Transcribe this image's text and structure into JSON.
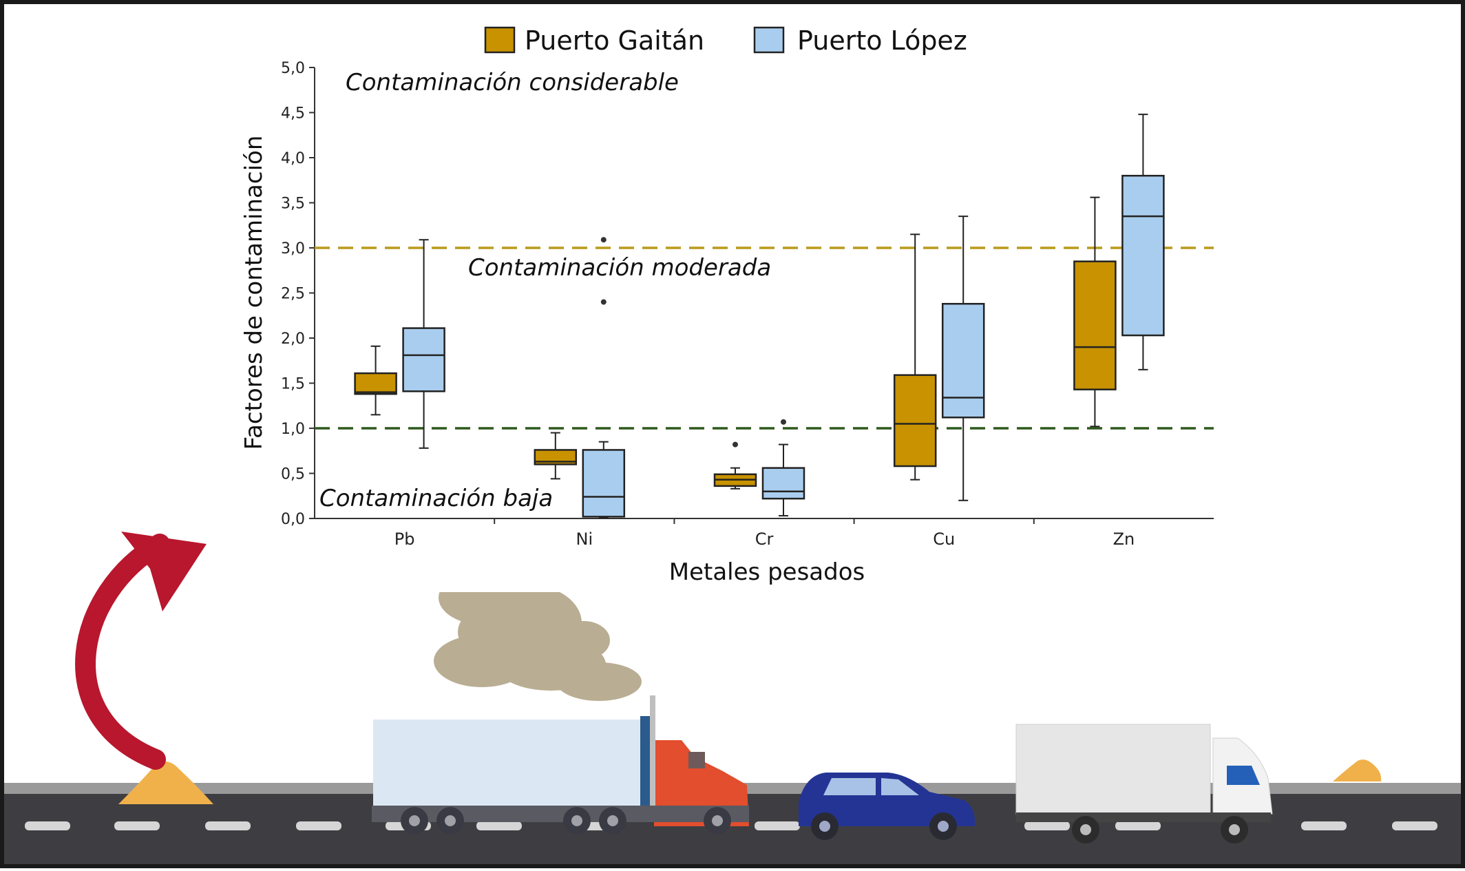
{
  "legend": [
    {
      "name": "Puerto Gaitán",
      "color": "#c89200"
    },
    {
      "name": "Puerto López",
      "color": "#a9cdee"
    }
  ],
  "chart_data": {
    "type": "boxplot",
    "xlabel": "Metales pesados",
    "ylabel": "Factores de contaminación",
    "ylim": [
      0,
      5
    ],
    "yticks": [
      "0,0",
      "0,5",
      "1,0",
      "1,5",
      "2,0",
      "2,5",
      "3,0",
      "3,5",
      "4,0",
      "4,5",
      "5,0"
    ],
    "categories": [
      "Pb",
      "Ni",
      "Cr",
      "Cu",
      "Zn"
    ],
    "series": [
      {
        "name": "Puerto Gaitán",
        "color": "#c89200",
        "boxes": [
          {
            "min": 1.15,
            "q1": 1.38,
            "median": 1.4,
            "q3": 1.61,
            "max": 1.91,
            "outliers": []
          },
          {
            "min": 0.44,
            "q1": 0.6,
            "median": 0.63,
            "q3": 0.76,
            "max": 0.95,
            "outliers": []
          },
          {
            "min": 0.33,
            "q1": 0.36,
            "median": 0.43,
            "q3": 0.49,
            "max": 0.56,
            "outliers": [
              0.82
            ]
          },
          {
            "min": 0.43,
            "q1": 0.58,
            "median": 1.05,
            "q3": 1.59,
            "max": 3.15,
            "outliers": []
          },
          {
            "min": 1.02,
            "q1": 1.43,
            "median": 1.9,
            "q3": 2.85,
            "max": 3.56,
            "outliers": []
          }
        ]
      },
      {
        "name": "Puerto López",
        "color": "#a9cdee",
        "boxes": [
          {
            "min": 0.78,
            "q1": 1.41,
            "median": 1.81,
            "q3": 2.11,
            "max": 3.09,
            "outliers": []
          },
          {
            "min": 0.01,
            "q1": 0.02,
            "median": 0.24,
            "q3": 0.76,
            "max": 0.85,
            "outliers": [
              2.4,
              3.09
            ]
          },
          {
            "min": 0.03,
            "q1": 0.22,
            "median": 0.3,
            "q3": 0.56,
            "max": 0.82,
            "outliers": [
              1.07
            ]
          },
          {
            "min": 0.2,
            "q1": 1.12,
            "median": 1.34,
            "q3": 2.38,
            "max": 3.35,
            "outliers": []
          },
          {
            "min": 1.65,
            "q1": 2.03,
            "median": 3.35,
            "q3": 3.8,
            "max": 4.48,
            "outliers": []
          }
        ]
      }
    ],
    "reference_lines": [
      {
        "y": 3.0,
        "color": "#b99a1a",
        "style": "dashed"
      },
      {
        "y": 1.0,
        "color": "#2e5a1c",
        "style": "dashed"
      }
    ],
    "annotations": [
      {
        "text": "Contaminación considerable"
      },
      {
        "text": "Contaminación moderada"
      },
      {
        "text": "Contaminación baja"
      }
    ]
  }
}
